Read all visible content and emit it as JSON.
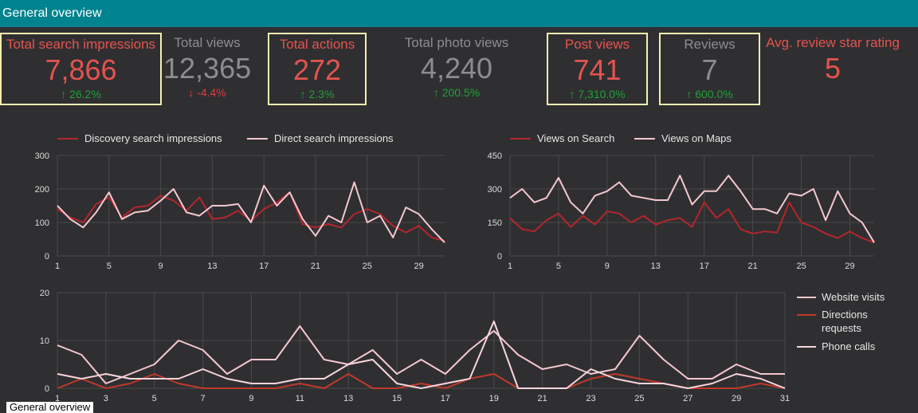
{
  "header": {
    "title": "General overview"
  },
  "kpis": [
    {
      "label": "Total search impressions",
      "value": "7,866",
      "change": "26.2%",
      "arrow": "up",
      "highlighted": true,
      "style": "red"
    },
    {
      "label": "Total views",
      "value": "12,365",
      "change": "-4.4%",
      "arrow": "down",
      "highlighted": false,
      "style": "grey"
    },
    {
      "label": "Total actions",
      "value": "272",
      "change": "2.3%",
      "arrow": "up",
      "highlighted": true,
      "style": "red"
    },
    {
      "label": "Total photo views",
      "value": "4,240",
      "change": "200.5%",
      "arrow": "up",
      "highlighted": false,
      "style": "grey"
    },
    {
      "label": "Post views",
      "value": "741",
      "change": "7,310.0%",
      "arrow": "up",
      "highlighted": true,
      "style": "red"
    },
    {
      "label": "Reviews",
      "value": "7",
      "change": "600.0%",
      "arrow": "up",
      "highlighted": true,
      "style": "grey"
    },
    {
      "label": "Avg. review star rating",
      "value": "5",
      "change": "",
      "arrow": "",
      "highlighted": false,
      "style": "red"
    }
  ],
  "colors": {
    "accent_bar": "#00838f",
    "dark_red": "#b3262c",
    "light_pink": "#f5c7cf",
    "highlight_box": "#f4efb0"
  },
  "footer_label": "General overview",
  "chart_data": [
    {
      "type": "line",
      "x": [
        1,
        2,
        3,
        4,
        5,
        6,
        7,
        8,
        9,
        10,
        11,
        12,
        13,
        14,
        15,
        16,
        17,
        18,
        19,
        20,
        21,
        22,
        23,
        24,
        25,
        26,
        27,
        28,
        29,
        30,
        31
      ],
      "xticks": [
        1,
        5,
        9,
        13,
        17,
        21,
        25,
        29
      ],
      "ylim": [
        0,
        300
      ],
      "yticks": [
        0,
        100,
        200,
        300
      ],
      "legend": "top",
      "series": [
        {
          "name": "Discovery search impressions",
          "color": "#b3262c",
          "values": [
            140,
            115,
            100,
            155,
            175,
            115,
            145,
            150,
            180,
            165,
            135,
            175,
            110,
            115,
            135,
            105,
            140,
            160,
            190,
            95,
            85,
            95,
            85,
            125,
            140,
            125,
            90,
            70,
            90,
            55,
            45
          ]
        },
        {
          "name": "Direct search impressions",
          "color": "#f5c7cf",
          "values": [
            150,
            110,
            85,
            130,
            190,
            110,
            130,
            135,
            165,
            200,
            130,
            120,
            150,
            150,
            155,
            100,
            210,
            150,
            190,
            110,
            60,
            120,
            100,
            220,
            100,
            120,
            55,
            145,
            125,
            80,
            40
          ]
        }
      ]
    },
    {
      "type": "line",
      "x": [
        1,
        2,
        3,
        4,
        5,
        6,
        7,
        8,
        9,
        10,
        11,
        12,
        13,
        14,
        15,
        16,
        17,
        18,
        19,
        20,
        21,
        22,
        23,
        24,
        25,
        26,
        27,
        28,
        29,
        30,
        31
      ],
      "xticks": [
        1,
        5,
        9,
        13,
        17,
        21,
        25,
        29
      ],
      "ylim": [
        0,
        450
      ],
      "yticks": [
        0,
        150,
        300,
        450
      ],
      "legend": "top",
      "series": [
        {
          "name": "Views on Search",
          "color": "#b3262c",
          "values": [
            170,
            120,
            110,
            160,
            190,
            130,
            180,
            140,
            200,
            190,
            150,
            180,
            140,
            160,
            170,
            130,
            240,
            170,
            210,
            120,
            100,
            110,
            105,
            240,
            150,
            130,
            100,
            80,
            110,
            80,
            60
          ]
        },
        {
          "name": "Views on Maps",
          "color": "#f5c7cf",
          "values": [
            260,
            300,
            240,
            260,
            350,
            240,
            190,
            270,
            290,
            330,
            270,
            260,
            250,
            250,
            360,
            230,
            290,
            290,
            360,
            290,
            210,
            210,
            190,
            280,
            270,
            300,
            160,
            290,
            190,
            150,
            60
          ]
        }
      ]
    },
    {
      "type": "line",
      "x": [
        1,
        2,
        3,
        4,
        5,
        6,
        7,
        8,
        9,
        10,
        11,
        12,
        13,
        14,
        15,
        16,
        17,
        18,
        19,
        20,
        21,
        22,
        23,
        24,
        25,
        26,
        27,
        28,
        29,
        30,
        31
      ],
      "xticks": [
        1,
        3,
        5,
        7,
        9,
        11,
        13,
        15,
        17,
        19,
        21,
        23,
        25,
        27,
        29,
        31
      ],
      "ylim": [
        0,
        20
      ],
      "yticks": [
        0,
        10,
        20
      ],
      "legend": "right",
      "series": [
        {
          "name": "Website visits",
          "color": "#f5c7cf",
          "values": [
            9,
            7,
            1,
            3,
            5,
            10,
            8,
            3,
            6,
            6,
            13,
            6,
            5,
            8,
            3,
            6,
            3,
            8,
            12,
            7,
            4,
            5,
            3,
            4,
            11,
            6,
            2,
            2,
            5,
            3,
            3
          ]
        },
        {
          "name": "Directions requests",
          "color": "#c0392b",
          "values": [
            0,
            2,
            0,
            1,
            3,
            1,
            0,
            0,
            0,
            0,
            1,
            0,
            3,
            0,
            0,
            1,
            0,
            2,
            3,
            0,
            0,
            0,
            2,
            3,
            2,
            1,
            0,
            0,
            0,
            1,
            0
          ]
        },
        {
          "name": "Phone calls",
          "color": "#f9d5dc",
          "values": [
            3,
            2,
            3,
            2,
            2,
            2,
            4,
            2,
            1,
            1,
            2,
            2,
            5,
            6,
            1,
            0,
            1,
            2,
            14,
            0,
            0,
            0,
            4,
            2,
            1,
            1,
            0,
            1,
            3,
            2,
            0
          ]
        }
      ]
    }
  ]
}
